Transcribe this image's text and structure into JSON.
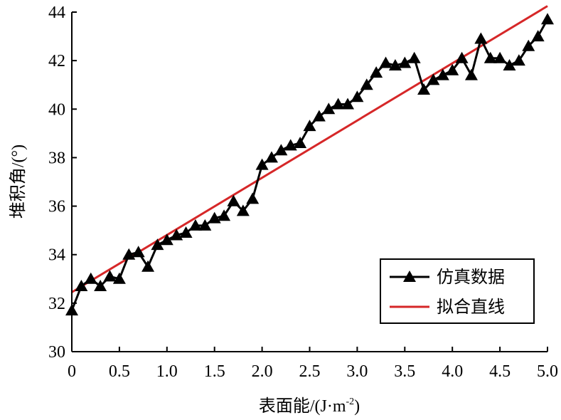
{
  "chart_data": {
    "type": "line",
    "xlabel": "表面能/(J·m",
    "xlabel_superscript": "-2",
    "xlabel_suffix": ")",
    "ylabel": "堆积角/(°)",
    "xlim": [
      0,
      5.0
    ],
    "ylim": [
      30,
      44
    ],
    "x_ticks": [
      "0",
      "0.5",
      "1.0",
      "1.5",
      "2.0",
      "2.5",
      "3.0",
      "3.5",
      "4.0",
      "4.5",
      "5.0"
    ],
    "y_ticks": [
      "30",
      "32",
      "34",
      "36",
      "38",
      "40",
      "42",
      "44"
    ],
    "grid": false,
    "legend_position": "bottom-right",
    "series": [
      {
        "name": "仿真数据",
        "color": "#000000",
        "marker": "triangle",
        "x": [
          0,
          0.1,
          0.2,
          0.3,
          0.4,
          0.5,
          0.6,
          0.7,
          0.8,
          0.9,
          1.0,
          1.1,
          1.2,
          1.3,
          1.4,
          1.5,
          1.6,
          1.7,
          1.8,
          1.9,
          2.0,
          2.1,
          2.2,
          2.3,
          2.4,
          2.5,
          2.6,
          2.7,
          2.8,
          2.9,
          3.0,
          3.1,
          3.2,
          3.3,
          3.4,
          3.5,
          3.6,
          3.7,
          3.8,
          3.9,
          4.0,
          4.1,
          4.2,
          4.3,
          4.4,
          4.5,
          4.6,
          4.7,
          4.8,
          4.9,
          5.0
        ],
        "y": [
          31.7,
          32.7,
          33.0,
          32.7,
          33.1,
          33.0,
          34.0,
          34.1,
          33.5,
          34.4,
          34.6,
          34.8,
          34.9,
          35.2,
          35.2,
          35.5,
          35.6,
          36.2,
          35.8,
          36.3,
          37.7,
          38.0,
          38.3,
          38.5,
          38.6,
          39.3,
          39.7,
          40.0,
          40.2,
          40.2,
          40.5,
          41.0,
          41.5,
          41.9,
          41.8,
          41.9,
          42.1,
          40.8,
          41.2,
          41.4,
          41.6,
          42.1,
          41.4,
          42.9,
          42.1,
          42.1,
          41.8,
          42.0,
          42.6,
          43.0,
          43.7
        ]
      },
      {
        "name": "拟合直线",
        "color": "#d62728",
        "marker": "none",
        "x": [
          0,
          5.0
        ],
        "y": [
          32.45,
          44.25
        ]
      }
    ]
  }
}
